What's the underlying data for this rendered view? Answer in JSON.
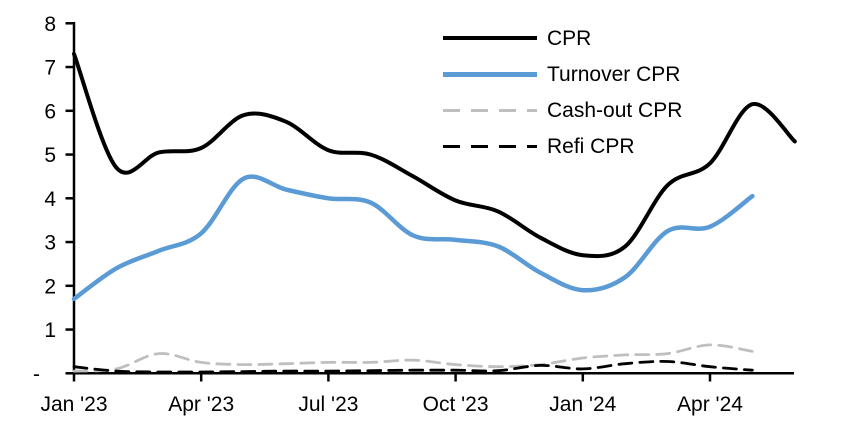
{
  "chart_data": {
    "type": "line",
    "title": "",
    "grid": false,
    "legend_position": "top-right",
    "background": "#ffffff",
    "axis_color": "#000000",
    "y_axis": {
      "range": [
        0,
        8
      ],
      "tick_values": [
        8,
        7,
        6,
        5,
        4,
        3,
        2,
        1,
        0
      ],
      "tick_labels": [
        "8",
        "7",
        "6",
        "5",
        "4",
        "3",
        "2",
        "1",
        "-"
      ]
    },
    "x_axis": {
      "unit": "month",
      "tick_month_indices": [
        0,
        3,
        6,
        9,
        12,
        15
      ],
      "tick_labels": [
        "Jan '23",
        "Apr '23",
        "Jul '23",
        "Oct '23",
        "Jan '24",
        "Apr '24"
      ]
    },
    "series": [
      {
        "name": "CPR",
        "color": "#000000",
        "style": "solid",
        "width": 4,
        "values": [
          7.3,
          4.7,
          5.05,
          5.15,
          5.9,
          5.75,
          5.1,
          5.0,
          4.5,
          3.95,
          3.7,
          3.1,
          2.7,
          2.9,
          4.3,
          4.8,
          6.15,
          5.3
        ]
      },
      {
        "name": "Turnover CPR",
        "color": "#5B9BD5",
        "style": "solid",
        "width": 4.5,
        "values": [
          1.7,
          2.4,
          2.8,
          3.2,
          4.45,
          4.2,
          4.0,
          3.9,
          3.15,
          3.05,
          2.9,
          2.3,
          1.9,
          2.2,
          3.25,
          3.35,
          4.05
        ]
      },
      {
        "name": "Cash-out CPR",
        "color": "#BFBFBF",
        "style": "dashed",
        "width": 2.8,
        "values": [
          0.05,
          0.1,
          0.45,
          0.25,
          0.2,
          0.22,
          0.25,
          0.25,
          0.3,
          0.2,
          0.15,
          0.2,
          0.35,
          0.42,
          0.45,
          0.65,
          0.5
        ]
      },
      {
        "name": "Refi CPR",
        "color": "#000000",
        "style": "dashed",
        "width": 2.8,
        "values": [
          0.15,
          0.05,
          0.03,
          0.03,
          0.04,
          0.05,
          0.05,
          0.06,
          0.07,
          0.07,
          0.06,
          0.18,
          0.1,
          0.22,
          0.27,
          0.15,
          0.07
        ]
      }
    ]
  }
}
